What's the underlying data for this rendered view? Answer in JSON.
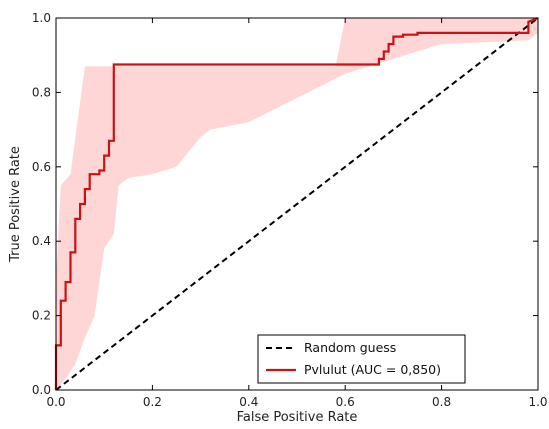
{
  "chart_data": {
    "type": "line",
    "title": "",
    "xlabel": "False Positive Rate",
    "ylabel": "True Positive Rate",
    "xlim": [
      0.0,
      1.0
    ],
    "ylim": [
      0.0,
      1.0
    ],
    "xticks": [
      "0.0",
      "0.2",
      "0.4",
      "0.6",
      "0.8",
      "1.0"
    ],
    "yticks": [
      "0.0",
      "0.2",
      "0.4",
      "0.6",
      "0.8",
      "1.0"
    ],
    "grid": false,
    "legend_position": "lower-right",
    "series": [
      {
        "name": "Random guess",
        "style": "dashed",
        "color": "#000000",
        "x": [
          0.0,
          1.0
        ],
        "y": [
          0.0,
          1.0
        ]
      },
      {
        "name": "Pvlulut (AUC = 0,850)",
        "style": "solid",
        "color": "#cc1111",
        "x": [
          0.0,
          0.0,
          0.01,
          0.01,
          0.02,
          0.02,
          0.03,
          0.03,
          0.04,
          0.04,
          0.05,
          0.05,
          0.06,
          0.06,
          0.07,
          0.07,
          0.09,
          0.09,
          0.1,
          0.1,
          0.11,
          0.11,
          0.12,
          0.12,
          0.67,
          0.67,
          0.68,
          0.68,
          0.69,
          0.69,
          0.7,
          0.7,
          0.72,
          0.72,
          0.75,
          0.75,
          0.98,
          0.98,
          1.0
        ],
        "y": [
          0.0,
          0.12,
          0.12,
          0.24,
          0.24,
          0.29,
          0.29,
          0.37,
          0.37,
          0.46,
          0.46,
          0.5,
          0.5,
          0.54,
          0.54,
          0.58,
          0.58,
          0.59,
          0.59,
          0.63,
          0.63,
          0.67,
          0.67,
          0.875,
          0.875,
          0.89,
          0.89,
          0.91,
          0.91,
          0.93,
          0.93,
          0.95,
          0.95,
          0.955,
          0.955,
          0.96,
          0.96,
          0.99,
          1.0
        ]
      }
    ],
    "confidence_band": {
      "color": "#ffd6d6",
      "x": [
        0.0,
        0.01,
        0.03,
        0.06,
        0.12,
        0.58,
        0.6,
        0.7,
        1.0,
        1.0,
        0.98,
        0.8,
        0.6,
        0.4,
        0.32,
        0.3,
        0.25,
        0.2,
        0.15,
        0.13,
        0.12,
        0.1,
        0.08,
        0.06,
        0.04,
        0.02,
        0.0
      ],
      "y": [
        0.3,
        0.55,
        0.58,
        0.87,
        0.87,
        0.87,
        1.0,
        1.0,
        1.0,
        0.96,
        0.94,
        0.93,
        0.85,
        0.72,
        0.7,
        0.68,
        0.6,
        0.58,
        0.57,
        0.55,
        0.42,
        0.38,
        0.2,
        0.14,
        0.07,
        0.03,
        0.0
      ]
    }
  }
}
